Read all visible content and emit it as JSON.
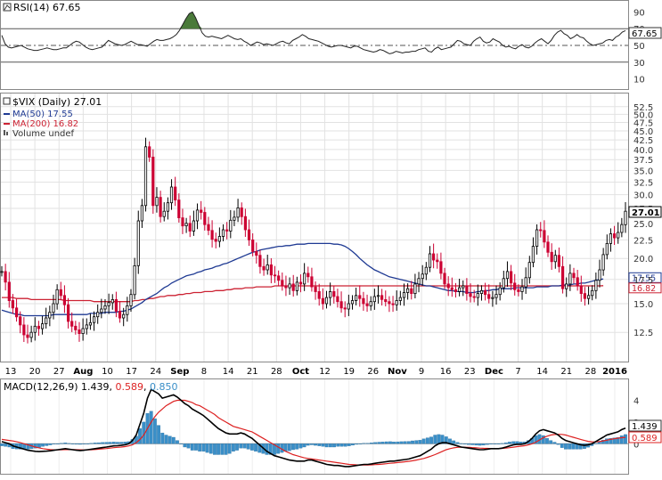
{
  "chart_data": [
    {
      "type": "line",
      "panel": "rsi",
      "legend": "RSI(14) 67.65",
      "last_value": "67.65",
      "ytick_labels": [
        "90",
        "70",
        "50",
        "30",
        "10"
      ],
      "ytick_values": [
        90,
        70,
        50,
        30,
        10
      ],
      "ylim": [
        0,
        100
      ],
      "levels": [
        70,
        50,
        30
      ],
      "overbought_fill": true,
      "values": [
        62,
        52,
        48,
        47,
        48,
        49,
        50,
        48,
        46,
        45,
        44,
        44,
        45,
        46,
        47,
        46,
        45,
        45,
        46,
        47,
        47,
        50,
        53,
        55,
        54,
        51,
        48,
        46,
        45,
        46,
        47,
        48,
        52,
        56,
        54,
        52,
        51,
        50,
        51,
        53,
        55,
        53,
        51,
        51,
        50,
        49,
        52,
        55,
        57,
        56,
        56,
        57,
        58,
        60,
        63,
        68,
        75,
        82,
        88,
        90,
        83,
        74,
        65,
        61,
        60,
        61,
        60,
        59,
        58,
        60,
        62,
        60,
        58,
        57,
        58,
        55,
        53,
        50,
        52,
        54,
        53,
        51,
        52,
        51,
        50,
        52,
        54,
        55,
        53,
        52,
        56,
        58,
        60,
        63,
        61,
        58,
        57,
        56,
        55,
        53,
        51,
        49,
        48,
        49,
        50,
        50,
        49,
        48,
        47,
        49,
        49,
        47,
        45,
        44,
        43,
        42,
        43,
        45,
        44,
        42,
        40,
        41,
        43,
        42,
        41,
        42,
        42,
        43,
        43,
        45,
        46,
        47,
        43,
        42,
        46,
        48,
        45,
        46,
        47,
        48,
        52,
        56,
        55,
        52,
        51,
        50,
        55,
        58,
        60,
        55,
        53,
        54,
        58,
        56,
        54,
        50,
        48,
        49,
        47,
        46,
        49,
        51,
        48,
        47,
        49,
        53,
        56,
        58,
        55,
        52,
        56,
        62,
        66,
        68,
        64,
        62,
        58,
        60,
        63,
        60,
        59,
        55,
        52,
        50,
        51,
        52,
        53,
        56,
        57,
        56,
        60,
        62,
        66,
        67.65
      ]
    },
    {
      "type": "candlestick",
      "panel": "price",
      "legend": [
        "$VIX (Daily) 27.01",
        "MA(50) 17.55",
        "MA(200) 16.82",
        "Volume undef"
      ],
      "last_value": "27.01",
      "ytick_labels": [
        "52.5",
        "50.0",
        "47.5",
        "45.0",
        "42.5",
        "40.0",
        "37.5",
        "35.0",
        "32.5",
        "30.0",
        "27.5",
        "25.0",
        "22.5",
        "20.0",
        "17.5",
        "15.0",
        "12.5"
      ],
      "ytick_values": [
        52.5,
        50,
        47.5,
        45,
        42.5,
        40,
        37.5,
        35,
        32.5,
        30,
        27.5,
        25,
        22.5,
        20,
        17.5,
        15,
        12.5
      ],
      "ylim": [
        10.5,
        55.5
      ],
      "log_scale": true,
      "grid": true,
      "colors": {
        "up": "#000000",
        "down": "#cc0033",
        "ma50": "#1f3a93",
        "ma200": "#cc2233"
      },
      "x_labels": [
        "13",
        "20",
        "27",
        "Aug",
        "10",
        "17",
        "24",
        "Sep",
        "8",
        "14",
        "21",
        "28",
        "Oct",
        "12",
        "19",
        "26",
        "Nov",
        "9",
        "16",
        "23",
        "Dec",
        "7",
        "14",
        "21",
        "28",
        "2016"
      ],
      "closes": [
        18.4,
        17.2,
        15.3,
        14.6,
        13.8,
        13.1,
        12.3,
        12.1,
        12.5,
        13.0,
        12.8,
        13.2,
        13.7,
        14.2,
        15.0,
        16.4,
        15.8,
        14.9,
        13.4,
        13.0,
        12.7,
        12.4,
        12.8,
        13.1,
        13.3,
        13.8,
        14.2,
        14.5,
        14.8,
        15.1,
        15.4,
        14.3,
        13.7,
        14.0,
        14.8,
        15.9,
        19.1,
        25.4,
        28.0,
        40.7,
        38.1,
        28.0,
        29.5,
        26.1,
        27.0,
        28.5,
        31.5,
        29.0,
        25.9,
        24.6,
        25.0,
        23.8,
        25.4,
        27.2,
        26.8,
        24.8,
        23.9,
        22.6,
        22.3,
        23.0,
        24.0,
        23.8,
        25.5,
        26.0,
        27.6,
        26.1,
        24.0,
        22.5,
        20.9,
        20.4,
        19.0,
        18.6,
        19.2,
        18.0,
        17.9,
        17.4,
        16.8,
        16.6,
        17.0,
        16.3,
        17.2,
        17.0,
        18.2,
        17.8,
        16.7,
        16.2,
        15.5,
        15.0,
        15.6,
        16.2,
        15.7,
        15.2,
        14.6,
        14.5,
        15.0,
        15.3,
        15.8,
        15.5,
        15.0,
        14.8,
        15.2,
        15.7,
        15.8,
        15.4,
        15.2,
        15.0,
        14.9,
        15.3,
        15.6,
        16.1,
        16.5,
        16.0,
        17.0,
        17.6,
        18.1,
        18.9,
        20.6,
        19.8,
        19.6,
        18.2,
        17.0,
        16.6,
        16.4,
        16.2,
        16.6,
        16.8,
        16.0,
        15.7,
        15.6,
        16.0,
        16.3,
        15.9,
        15.5,
        15.6,
        15.9,
        16.6,
        17.6,
        18.4,
        17.1,
        16.4,
        16.2,
        16.7,
        17.7,
        19.5,
        21.6,
        24.0,
        23.9,
        22.2,
        20.8,
        19.6,
        20.4,
        19.0,
        16.5,
        17.0,
        18.2,
        17.7,
        16.8,
        16.0,
        15.5,
        15.8,
        16.3,
        17.4,
        18.6,
        20.5,
        22.0,
        23.4,
        22.8,
        23.6,
        24.8,
        27.01
      ],
      "ma50": [
        14.4,
        14.3,
        14.2,
        14.1,
        14.0,
        14.0,
        13.9,
        13.9,
        13.9,
        13.9,
        13.9,
        13.9,
        13.9,
        13.9,
        14.0,
        14.0,
        14.0,
        14.0,
        14.0,
        14.0,
        14.0,
        14.0,
        14.0,
        14.0,
        14.1,
        14.1,
        14.1,
        14.1,
        14.2,
        14.2,
        14.2,
        14.2,
        14.3,
        14.3,
        14.4,
        14.5,
        14.7,
        14.9,
        15.1,
        15.4,
        15.6,
        15.8,
        16.0,
        16.3,
        16.6,
        16.8,
        17.1,
        17.3,
        17.5,
        17.7,
        17.9,
        18.0,
        18.1,
        18.3,
        18.4,
        18.6,
        18.7,
        18.8,
        19.0,
        19.1,
        19.3,
        19.4,
        19.6,
        19.8,
        20.0,
        20.2,
        20.4,
        20.6,
        20.8,
        20.9,
        21.1,
        21.2,
        21.3,
        21.4,
        21.5,
        21.6,
        21.6,
        21.7,
        21.7,
        21.8,
        21.9,
        21.9,
        21.9,
        22.0,
        22.0,
        22.0,
        22.0,
        22.0,
        22.0,
        22.0,
        21.9,
        21.9,
        21.8,
        21.6,
        21.3,
        20.9,
        20.5,
        20.0,
        19.6,
        19.2,
        18.9,
        18.6,
        18.4,
        18.2,
        18.0,
        17.8,
        17.7,
        17.6,
        17.5,
        17.4,
        17.3,
        17.2,
        17.1,
        17.0,
        16.9,
        16.8,
        16.8,
        16.7,
        16.6,
        16.5,
        16.4,
        16.3,
        16.3,
        16.2,
        16.2,
        16.2,
        16.1,
        16.1,
        16.1,
        16.2,
        16.2,
        16.3,
        16.3,
        16.4,
        16.4,
        16.5,
        16.5,
        16.5,
        16.5,
        16.6,
        16.6,
        16.6,
        16.6,
        16.6,
        16.6,
        16.7,
        16.7,
        16.7,
        16.7,
        16.8,
        16.8,
        16.8,
        16.9,
        16.9,
        16.9,
        17.0,
        17.0,
        17.1,
        17.1,
        17.2,
        17.3,
        17.4,
        17.5,
        17.55
      ],
      "ma200": [
        15.6,
        15.6,
        15.6,
        15.6,
        15.5,
        15.5,
        15.5,
        15.5,
        15.4,
        15.4,
        15.4,
        15.4,
        15.4,
        15.4,
        15.4,
        15.4,
        15.4,
        15.3,
        15.3,
        15.3,
        15.3,
        15.3,
        15.3,
        15.3,
        15.3,
        15.2,
        15.2,
        15.2,
        15.2,
        15.2,
        15.2,
        15.2,
        15.2,
        15.2,
        15.2,
        15.2,
        15.3,
        15.3,
        15.4,
        15.4,
        15.5,
        15.5,
        15.6,
        15.7,
        15.7,
        15.8,
        15.8,
        15.8,
        15.9,
        15.9,
        16.0,
        16.0,
        16.1,
        16.1,
        16.1,
        16.2,
        16.2,
        16.2,
        16.3,
        16.3,
        16.3,
        16.4,
        16.4,
        16.5,
        16.5,
        16.5,
        16.6,
        16.6,
        16.6,
        16.7,
        16.7,
        16.7,
        16.7,
        16.7,
        16.8,
        16.8,
        16.8,
        16.8,
        16.8,
        16.8,
        16.8,
        16.8,
        16.8,
        16.8,
        16.8,
        16.8,
        16.8,
        16.8,
        16.8,
        16.8,
        16.8,
        16.8,
        16.8,
        16.8,
        16.8,
        16.8,
        16.8,
        16.8,
        16.8,
        16.8,
        16.8,
        16.8,
        16.8,
        16.8,
        16.8,
        16.8,
        16.8,
        16.8,
        16.8,
        16.8,
        16.8,
        16.8,
        16.8,
        16.8,
        16.8,
        16.8,
        16.8,
        16.8,
        16.8,
        16.8,
        16.8,
        16.8,
        16.8,
        16.8,
        16.8,
        16.8,
        16.8,
        16.8,
        16.8,
        16.8,
        16.8,
        16.8,
        16.8,
        16.8,
        16.8,
        16.8,
        16.8,
        16.8,
        16.8,
        16.8,
        16.8,
        16.8,
        16.8,
        16.8,
        16.8,
        16.8,
        16.8,
        16.8,
        16.8,
        16.8,
        16.8,
        16.8,
        16.8,
        16.8,
        16.8,
        16.8,
        16.8,
        16.8,
        16.8,
        16.8,
        16.8,
        16.8,
        16.8,
        16.82
      ]
    },
    {
      "type": "line",
      "panel": "macd",
      "legend_prefix": "MACD(12,26,9)",
      "legend_macd": "1.439",
      "legend_signal": "0.589",
      "legend_hist": "0.850",
      "last_macd": "1.439",
      "last_signal": "0.589",
      "ytick_labels": [
        "4",
        "2",
        "0"
      ],
      "ytick_values": [
        4,
        2,
        0
      ],
      "ylim": [
        -2.6,
        5.6
      ],
      "colors": {
        "macd": "#000000",
        "signal": "#dd2222",
        "hist": "#3a8fc8"
      },
      "macd": [
        0.2,
        0.1,
        0.0,
        -0.2,
        -0.3,
        -0.4,
        -0.5,
        -0.6,
        -0.65,
        -0.7,
        -0.72,
        -0.7,
        -0.68,
        -0.65,
        -0.6,
        -0.55,
        -0.5,
        -0.45,
        -0.5,
        -0.55,
        -0.6,
        -0.62,
        -0.6,
        -0.55,
        -0.5,
        -0.45,
        -0.4,
        -0.35,
        -0.3,
        -0.25,
        -0.2,
        -0.18,
        -0.15,
        -0.1,
        0.0,
        0.3,
        0.8,
        1.8,
        2.8,
        4.2,
        5.0,
        4.8,
        4.6,
        4.2,
        4.3,
        4.4,
        4.5,
        4.3,
        4.0,
        3.7,
        3.5,
        3.2,
        3.0,
        2.8,
        2.6,
        2.3,
        2.0,
        1.7,
        1.4,
        1.2,
        1.0,
        0.9,
        0.9,
        0.9,
        1.0,
        0.9,
        0.7,
        0.5,
        0.2,
        -0.1,
        -0.4,
        -0.7,
        -0.9,
        -1.1,
        -1.2,
        -1.3,
        -1.4,
        -1.5,
        -1.55,
        -1.6,
        -1.6,
        -1.6,
        -1.5,
        -1.5,
        -1.6,
        -1.7,
        -1.8,
        -1.9,
        -1.95,
        -2.0,
        -2.0,
        -2.05,
        -2.1,
        -2.1,
        -2.05,
        -2.0,
        -1.95,
        -1.9,
        -1.9,
        -1.85,
        -1.8,
        -1.75,
        -1.7,
        -1.65,
        -1.6,
        -1.6,
        -1.55,
        -1.5,
        -1.45,
        -1.4,
        -1.3,
        -1.2,
        -1.1,
        -0.9,
        -0.7,
        -0.5,
        -0.2,
        0.0,
        0.1,
        0.1,
        0.0,
        -0.1,
        -0.2,
        -0.3,
        -0.35,
        -0.4,
        -0.45,
        -0.5,
        -0.55,
        -0.55,
        -0.5,
        -0.45,
        -0.45,
        -0.45,
        -0.4,
        -0.3,
        -0.2,
        -0.1,
        -0.05,
        -0.05,
        0.0,
        0.2,
        0.5,
        0.9,
        1.2,
        1.3,
        1.2,
        1.1,
        1.0,
        0.8,
        0.5,
        0.3,
        0.2,
        0.1,
        0.0,
        -0.1,
        -0.15,
        -0.1,
        0.0,
        0.2,
        0.4,
        0.6,
        0.8,
        0.9,
        1.0,
        1.1,
        1.3,
        1.439
      ],
      "signal": [
        0.4,
        0.35,
        0.3,
        0.25,
        0.18,
        0.1,
        0.0,
        -0.1,
        -0.2,
        -0.3,
        -0.38,
        -0.45,
        -0.5,
        -0.54,
        -0.56,
        -0.56,
        -0.55,
        -0.54,
        -0.53,
        -0.54,
        -0.55,
        -0.56,
        -0.57,
        -0.56,
        -0.55,
        -0.53,
        -0.5,
        -0.47,
        -0.44,
        -0.4,
        -0.36,
        -0.33,
        -0.3,
        -0.26,
        -0.2,
        -0.1,
        0.1,
        0.4,
        0.8,
        1.4,
        2.0,
        2.5,
        2.9,
        3.2,
        3.5,
        3.7,
        3.9,
        4.0,
        4.0,
        4.0,
        3.9,
        3.8,
        3.6,
        3.5,
        3.3,
        3.1,
        2.9,
        2.7,
        2.4,
        2.2,
        2.0,
        1.8,
        1.6,
        1.5,
        1.4,
        1.3,
        1.2,
        1.1,
        0.9,
        0.7,
        0.5,
        0.3,
        0.1,
        -0.1,
        -0.3,
        -0.5,
        -0.7,
        -0.85,
        -1.0,
        -1.1,
        -1.2,
        -1.3,
        -1.35,
        -1.4,
        -1.45,
        -1.5,
        -1.55,
        -1.6,
        -1.65,
        -1.7,
        -1.75,
        -1.8,
        -1.85,
        -1.9,
        -1.92,
        -1.94,
        -1.95,
        -1.95,
        -1.95,
        -1.94,
        -1.92,
        -1.9,
        -1.87,
        -1.84,
        -1.8,
        -1.77,
        -1.73,
        -1.7,
        -1.66,
        -1.62,
        -1.57,
        -1.5,
        -1.43,
        -1.35,
        -1.25,
        -1.13,
        -1.0,
        -0.85,
        -0.7,
        -0.55,
        -0.45,
        -0.38,
        -0.33,
        -0.32,
        -0.32,
        -0.33,
        -0.35,
        -0.37,
        -0.4,
        -0.42,
        -0.43,
        -0.44,
        -0.44,
        -0.44,
        -0.43,
        -0.4,
        -0.36,
        -0.31,
        -0.26,
        -0.22,
        -0.18,
        -0.1,
        0.0,
        0.15,
        0.35,
        0.55,
        0.7,
        0.8,
        0.85,
        0.87,
        0.86,
        0.8,
        0.7,
        0.6,
        0.5,
        0.4,
        0.3,
        0.22,
        0.18,
        0.17,
        0.2,
        0.26,
        0.33,
        0.4,
        0.46,
        0.52,
        0.56,
        0.589
      ]
    }
  ]
}
